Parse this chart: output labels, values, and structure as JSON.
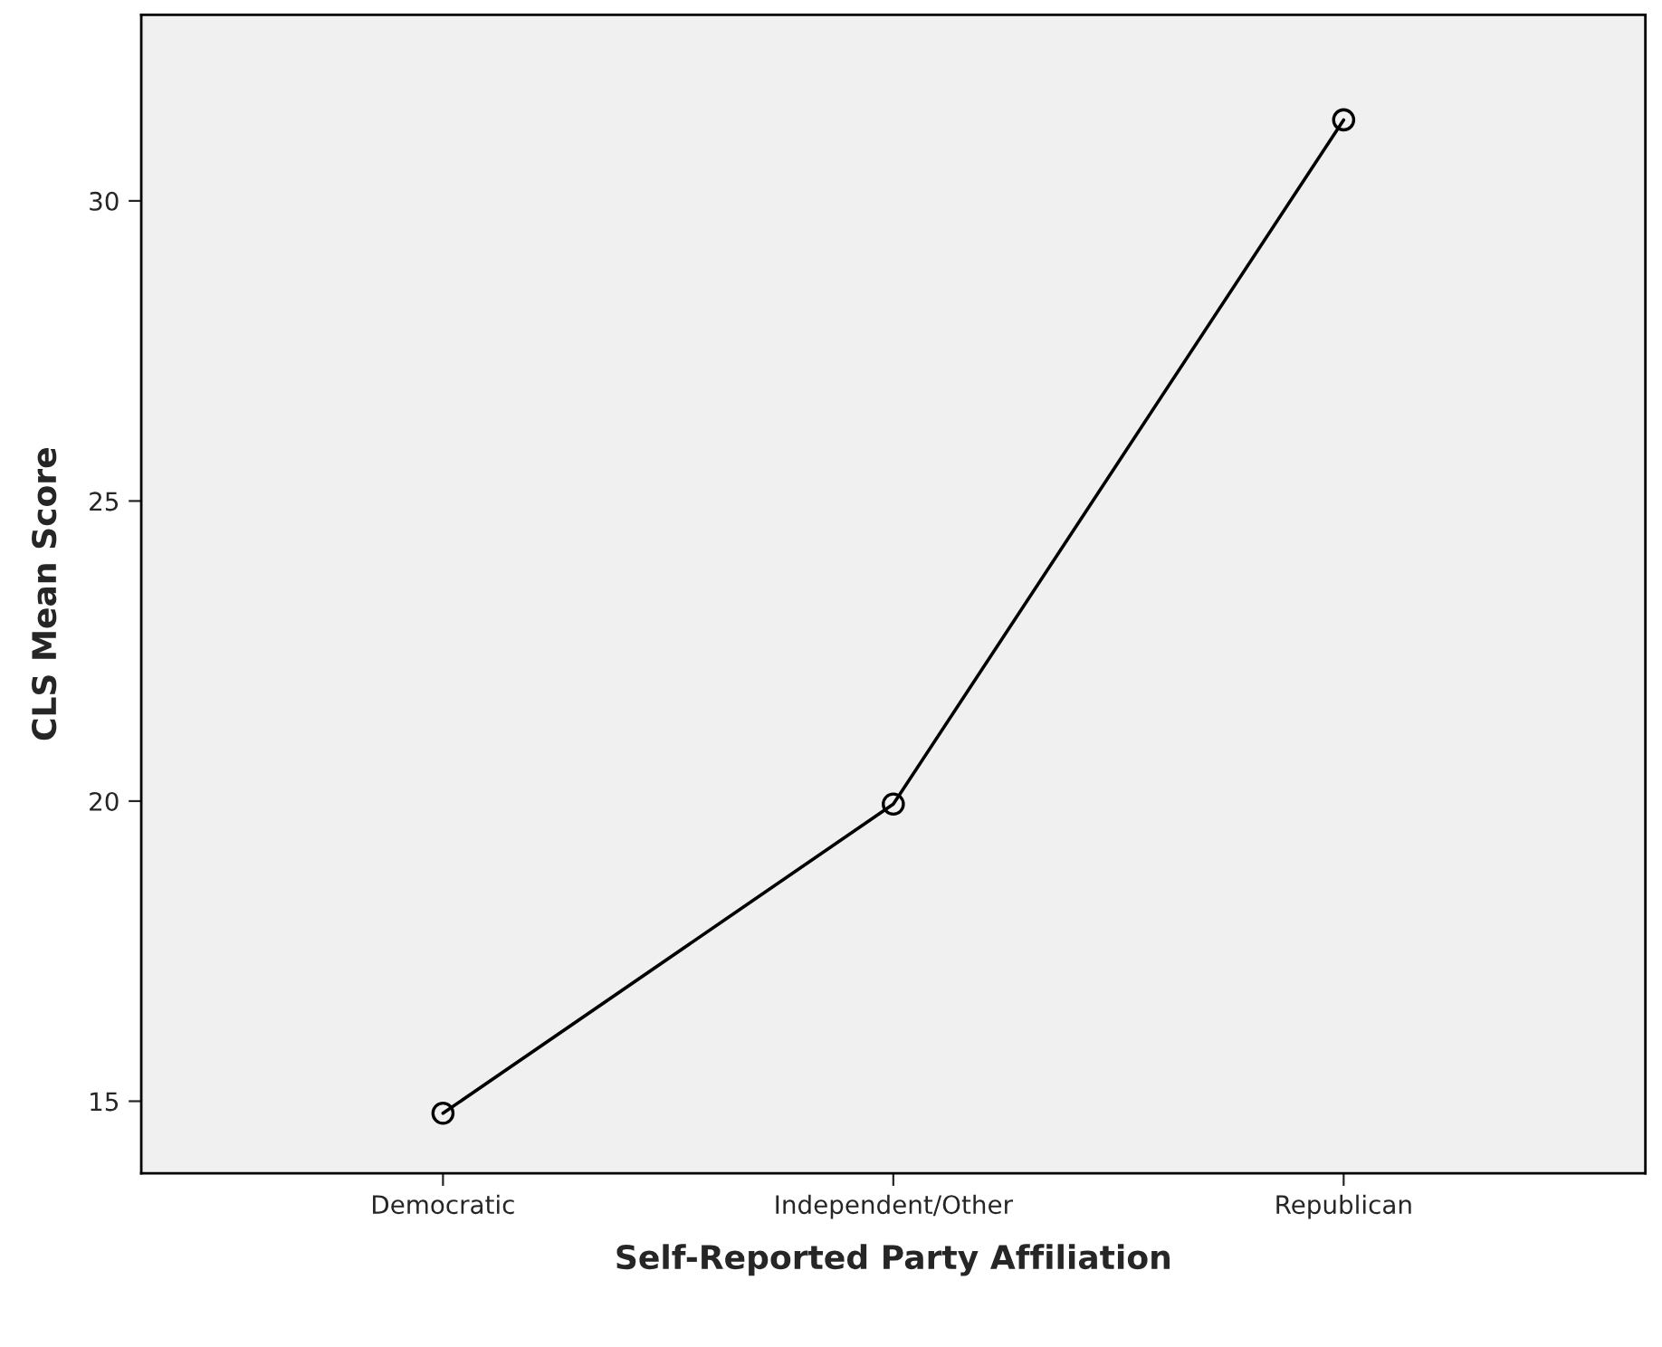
{
  "chart_data": {
    "type": "line",
    "xlabel": "Self-Reported Party Affiliation",
    "ylabel": "CLS Mean Score",
    "categories": [
      "Democratic",
      "Independent/Other",
      "Republican"
    ],
    "series": [
      {
        "color": "#000000",
        "values": [
          14.8,
          19.95,
          31.35
        ]
      }
    ],
    "ylim": [
      13.8,
      33.1
    ],
    "yticks": [
      15,
      20,
      25,
      30
    ],
    "marker": "circle",
    "line_style": "solid",
    "grid": false,
    "legend": false
  }
}
